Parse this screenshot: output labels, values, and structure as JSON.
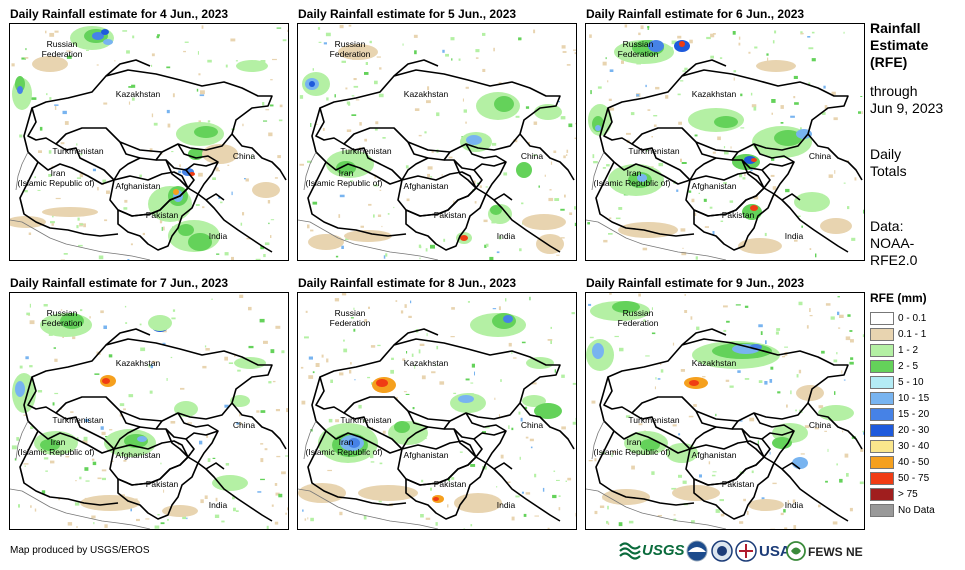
{
  "panels": [
    {
      "title": "Daily Rainfall estimate for 4 Jun., 2023"
    },
    {
      "title": "Daily Rainfall estimate for 5 Jun., 2023"
    },
    {
      "title": "Daily Rainfall estimate for 6 Jun., 2023"
    },
    {
      "title": "Daily Rainfall estimate for 7 Jun., 2023"
    },
    {
      "title": "Daily Rainfall estimate for 8 Jun., 2023"
    },
    {
      "title": "Daily Rainfall estimate for 9 Jun., 2023"
    }
  ],
  "countries": {
    "russia_1": "Russian",
    "russia_2": "Federation",
    "kazakhstan": "Kazakhstan",
    "turkmenistan": "Turkmenistan",
    "iran_1": "Iran",
    "iran_2": "(Islamic Republic of)",
    "afghanistan": "Afghanistan",
    "pakistan": "Pakistan",
    "china": "China",
    "india": "India"
  },
  "sidebar": {
    "title_lines": [
      "Rainfall",
      "Estimate",
      "(RFE)"
    ],
    "through_lines": [
      "through",
      "Jun 9, 2023"
    ],
    "totals_lines": [
      "Daily",
      "Totals"
    ],
    "data_lines": [
      "Data:",
      "NOAA-",
      "RFE2.0"
    ]
  },
  "legend": {
    "title": "RFE (mm)",
    "items": [
      {
        "label": "0 - 0.1",
        "color": "#ffffff"
      },
      {
        "label": "0.1 - 1",
        "color": "#e8d4b0"
      },
      {
        "label": "1 - 2",
        "color": "#b4f0a4"
      },
      {
        "label": "2 - 5",
        "color": "#64d25a"
      },
      {
        "label": "5 - 10",
        "color": "#b4ecf5"
      },
      {
        "label": "10 - 15",
        "color": "#78b4f0"
      },
      {
        "label": "15 - 20",
        "color": "#4682e6"
      },
      {
        "label": "20 - 30",
        "color": "#1e5adc"
      },
      {
        "label": "30 - 40",
        "color": "#fae68c"
      },
      {
        "label": "40 - 50",
        "color": "#f5a01e"
      },
      {
        "label": "50 - 75",
        "color": "#f03c14"
      },
      {
        "label": "> 75",
        "color": "#a01e1e"
      },
      {
        "label": "No Data",
        "color": "#999999"
      }
    ]
  },
  "credit": "Map produced by USGS/EROS",
  "logos": {
    "usgs": "USGS",
    "usaid": "USAID",
    "fews": "FEWS NET"
  }
}
